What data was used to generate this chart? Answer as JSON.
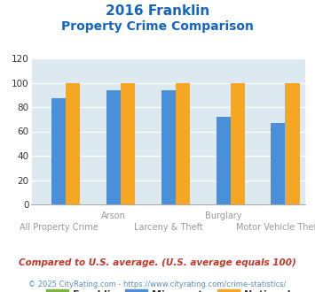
{
  "title_line1": "2016 Franklin",
  "title_line2": "Property Crime Comparison",
  "title_color": "#1565c0",
  "categories": [
    "All Property Crime",
    "Arson",
    "Larceny & Theft",
    "Burglary",
    "Motor Vehicle Theft"
  ],
  "secondary_labels": [
    "",
    "Arson",
    "",
    "Burglary",
    ""
  ],
  "primary_labels": [
    "All Property Crime",
    "",
    "Larceny & Theft",
    "",
    "Motor Vehicle Theft"
  ],
  "franklin": [
    0,
    0,
    0,
    0,
    0
  ],
  "minnesota": [
    87,
    94,
    94,
    72,
    67
  ],
  "national": [
    100,
    100,
    100,
    100,
    100
  ],
  "franklin_color": "#7cb342",
  "minnesota_color": "#4a90d9",
  "national_color": "#f5a623",
  "ylim": [
    0,
    120
  ],
  "yticks": [
    0,
    20,
    40,
    60,
    80,
    100,
    120
  ],
  "background_color": "#dce9f0",
  "grid_color": "#ffffff",
  "footnote": "Compared to U.S. average. (U.S. average equals 100)",
  "footnote2": "© 2025 CityRating.com - https://www.cityrating.com/crime-statistics/",
  "footnote_color": "#c0392b",
  "footnote2_color": "#5b8db8"
}
